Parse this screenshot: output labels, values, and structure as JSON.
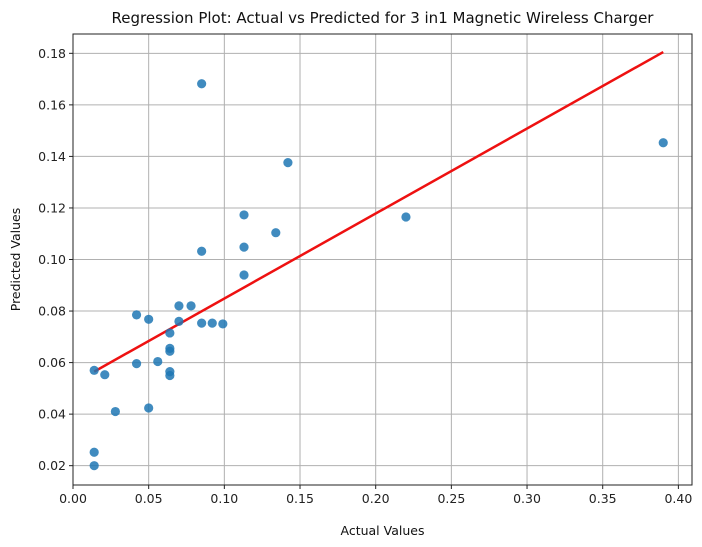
{
  "chart_data": {
    "type": "scatter",
    "title": "Regression Plot: Actual vs Predicted for 3 in1 Magnetic Wireless Charger",
    "xlabel": "Actual Values",
    "ylabel": "Predicted Values",
    "xlim": [
      -0.0,
      0.409
    ],
    "ylim": [
      0.0125,
      0.1875
    ],
    "xticks": [
      0.0,
      0.05,
      0.1,
      0.15,
      0.2,
      0.25,
      0.3,
      0.35,
      0.4
    ],
    "xtick_labels": [
      "0.00",
      "0.05",
      "0.10",
      "0.15",
      "0.20",
      "0.25",
      "0.30",
      "0.35",
      "0.40"
    ],
    "yticks": [
      0.02,
      0.04,
      0.06,
      0.08,
      0.1,
      0.12,
      0.14,
      0.16,
      0.18
    ],
    "ytick_labels": [
      "0.02",
      "0.04",
      "0.06",
      "0.08",
      "0.10",
      "0.12",
      "0.14",
      "0.16",
      "0.18"
    ],
    "grid": true,
    "point_color": "#1f77b4",
    "line_color": "#ee1111",
    "points": [
      {
        "x": 0.014,
        "y": 0.02
      },
      {
        "x": 0.014,
        "y": 0.0252
      },
      {
        "x": 0.014,
        "y": 0.057
      },
      {
        "x": 0.021,
        "y": 0.0553
      },
      {
        "x": 0.028,
        "y": 0.041
      },
      {
        "x": 0.042,
        "y": 0.0785
      },
      {
        "x": 0.042,
        "y": 0.0596
      },
      {
        "x": 0.05,
        "y": 0.0424
      },
      {
        "x": 0.05,
        "y": 0.0768
      },
      {
        "x": 0.056,
        "y": 0.0604
      },
      {
        "x": 0.064,
        "y": 0.055
      },
      {
        "x": 0.064,
        "y": 0.0565
      },
      {
        "x": 0.064,
        "y": 0.0644
      },
      {
        "x": 0.064,
        "y": 0.0655
      },
      {
        "x": 0.064,
        "y": 0.0715
      },
      {
        "x": 0.07,
        "y": 0.076
      },
      {
        "x": 0.07,
        "y": 0.082
      },
      {
        "x": 0.078,
        "y": 0.082
      },
      {
        "x": 0.085,
        "y": 0.0753
      },
      {
        "x": 0.085,
        "y": 0.1032
      },
      {
        "x": 0.085,
        "y": 0.1682
      },
      {
        "x": 0.092,
        "y": 0.0753
      },
      {
        "x": 0.099,
        "y": 0.075
      },
      {
        "x": 0.113,
        "y": 0.094
      },
      {
        "x": 0.113,
        "y": 0.1048
      },
      {
        "x": 0.113,
        "y": 0.1173
      },
      {
        "x": 0.134,
        "y": 0.1104
      },
      {
        "x": 0.142,
        "y": 0.1376
      },
      {
        "x": 0.22,
        "y": 0.1165
      },
      {
        "x": 0.39,
        "y": 0.1453
      }
    ],
    "regression_line": {
      "x": [
        0.014,
        0.39
      ],
      "y": [
        0.0565,
        0.1805
      ]
    }
  }
}
